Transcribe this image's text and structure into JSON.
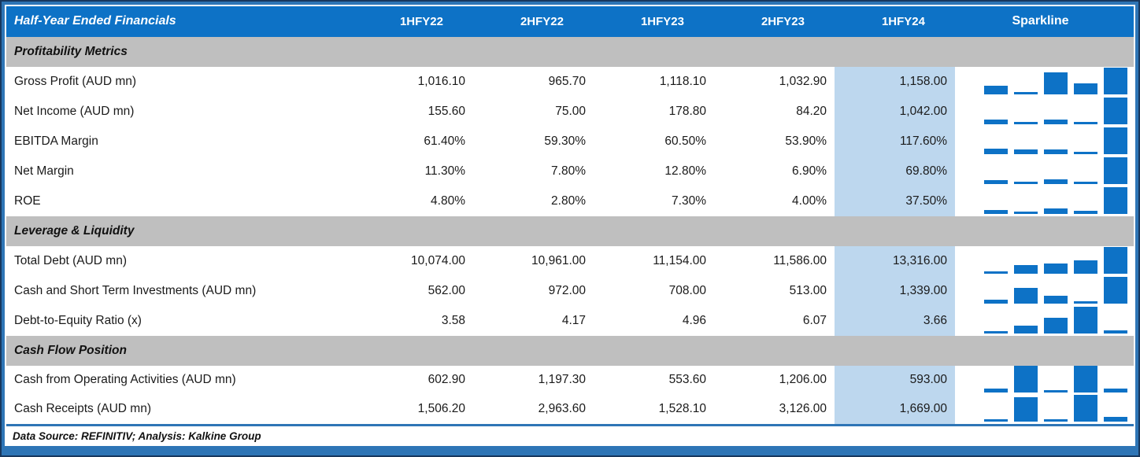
{
  "header": {
    "title": "Half-Year Ended Financials",
    "columns": [
      "1HFY22",
      "2HFY22",
      "1HFY23",
      "2HFY23",
      "1HFY24",
      "Sparkline"
    ]
  },
  "sections": [
    {
      "label": "Profitability Metrics",
      "rows": [
        {
          "label": "Gross Profit (AUD mn)",
          "values": [
            "1,016.10",
            "965.70",
            "1,118.10",
            "1,032.90",
            "1,158.00"
          ],
          "numeric": [
            1016.1,
            965.7,
            1118.1,
            1032.9,
            1158.0
          ]
        },
        {
          "label": "Net Income (AUD mn)",
          "values": [
            "155.60",
            "75.00",
            "178.80",
            "84.20",
            "1,042.00"
          ],
          "numeric": [
            155.6,
            75.0,
            178.8,
            84.2,
            1042.0
          ]
        },
        {
          "label": "EBITDA Margin",
          "values": [
            "61.40%",
            "59.30%",
            "60.50%",
            "53.90%",
            "117.60%"
          ],
          "numeric": [
            61.4,
            59.3,
            60.5,
            53.9,
            117.6
          ]
        },
        {
          "label": "Net Margin",
          "values": [
            "11.30%",
            "7.80%",
            "12.80%",
            "6.90%",
            "69.80%"
          ],
          "numeric": [
            11.3,
            7.8,
            12.8,
            6.9,
            69.8
          ]
        },
        {
          "label": "ROE",
          "values": [
            "4.80%",
            "2.80%",
            "7.30%",
            "4.00%",
            "37.50%"
          ],
          "numeric": [
            4.8,
            2.8,
            7.3,
            4.0,
            37.5
          ]
        }
      ]
    },
    {
      "label": "Leverage & Liquidity",
      "rows": [
        {
          "label": "Total Debt (AUD mn)",
          "values": [
            "10,074.00",
            "10,961.00",
            "11,154.00",
            "11,586.00",
            "13,316.00"
          ],
          "numeric": [
            10074.0,
            10961.0,
            11154.0,
            11586.0,
            13316.0
          ]
        },
        {
          "label": "Cash and Short Term Investments (AUD mn)",
          "values": [
            "562.00",
            "972.00",
            "708.00",
            "513.00",
            "1,339.00"
          ],
          "numeric": [
            562.0,
            972.0,
            708.0,
            513.0,
            1339.0
          ]
        },
        {
          "label": "Debt-to-Equity Ratio (x)",
          "values": [
            "3.58",
            "4.17",
            "4.96",
            "6.07",
            "3.66"
          ],
          "numeric": [
            3.58,
            4.17,
            4.96,
            6.07,
            3.66
          ]
        }
      ]
    },
    {
      "label": "Cash Flow Position",
      "rows": [
        {
          "label": "Cash from Operating Activities (AUD mn)",
          "values": [
            "602.90",
            "1,197.30",
            "553.60",
            "1,206.00",
            "593.00"
          ],
          "numeric": [
            602.9,
            1197.3,
            553.6,
            1206.0,
            593.0
          ]
        },
        {
          "label": "Cash Receipts (AUD mn)",
          "values": [
            "1,506.20",
            "2,963.60",
            "1,528.10",
            "3,126.00",
            "1,669.00"
          ],
          "numeric": [
            1506.2,
            2963.6,
            1528.1,
            3126.0,
            1669.0
          ]
        }
      ]
    }
  ],
  "footer": {
    "text": "Data Source: REFINITIV; Analysis: Kalkine Group"
  },
  "colors": {
    "header_bg": "#0d72c6",
    "section_bg": "#bfbfbf",
    "highlight_col_bg": "#bdd7ee",
    "sparkline_bar": "#0d72c6",
    "frame_border": "#2e75b6",
    "outer_edge": "#17375e"
  },
  "highlighted_column": "1HFY24"
}
